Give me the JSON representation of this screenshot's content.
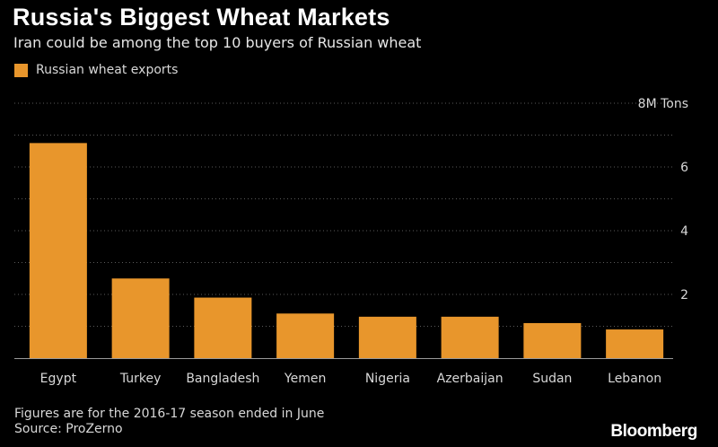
{
  "header": {
    "title": "Russia's Biggest Wheat Markets",
    "subtitle": "Iran could be among the top 10 buyers of Russian wheat"
  },
  "legend": {
    "label": "Russian wheat exports"
  },
  "footer": {
    "note": "Figures are for the 2016-17 season ended in June",
    "source": "Source: ProZerno",
    "brand": "Bloomberg"
  },
  "colors": {
    "bar": "#E8962C",
    "background": "#000000",
    "gridline": "#5a5a5a"
  },
  "chart_data": {
    "type": "bar",
    "title": "Russia's Biggest Wheat Markets",
    "subtitle": "Iran could be among the top 10 buyers of Russian wheat",
    "categories": [
      "Egypt",
      "Turkey",
      "Bangladesh",
      "Yemen",
      "Nigeria",
      "Azerbaijan",
      "Sudan",
      "Lebanon"
    ],
    "series": [
      {
        "name": "Russian wheat exports",
        "values": [
          6.75,
          2.5,
          1.9,
          1.4,
          1.3,
          1.3,
          1.1,
          0.9
        ]
      }
    ],
    "ylim": [
      0,
      8
    ],
    "yticks": [
      {
        "value": 2,
        "label": "2"
      },
      {
        "value": 4,
        "label": "4"
      },
      {
        "value": 6,
        "label": "6"
      },
      {
        "value": 8,
        "label": "8M Tons"
      }
    ],
    "grid": true,
    "grid_style": "dotted",
    "legend_position": "top-left",
    "y_axis_side": "right"
  }
}
